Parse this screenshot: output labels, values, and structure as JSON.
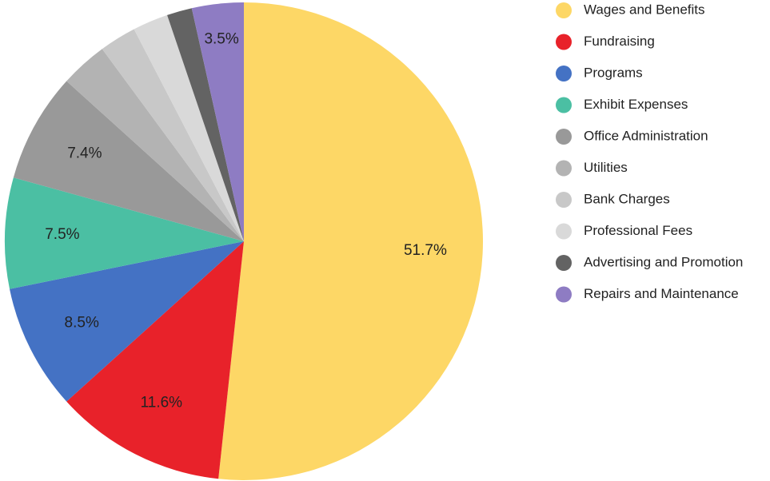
{
  "chart_data": {
    "type": "pie",
    "categories": [
      "Wages and Benefits",
      "Fundraising",
      "Programs",
      "Exhibit Expenses",
      "Office Administration",
      "Utilities",
      "Bank Charges",
      "Professional Fees",
      "Advertising and Promotion",
      "Repairs and Maintenance"
    ],
    "values": [
      51.7,
      11.6,
      8.5,
      7.5,
      7.4,
      3.2,
      2.5,
      2.4,
      1.7,
      3.5
    ],
    "value_labels": [
      "51.7%",
      "11.6%",
      "8.5%",
      "7.5%",
      "7.4%",
      null,
      null,
      null,
      null,
      "3.5%"
    ],
    "colors": [
      "#fdd766",
      "#e8222a",
      "#4472c4",
      "#4bbfa3",
      "#999999",
      "#b3b3b3",
      "#c8c8c8",
      "#d9d9d9",
      "#636363",
      "#8e7cc3"
    ],
    "legend": "right"
  }
}
